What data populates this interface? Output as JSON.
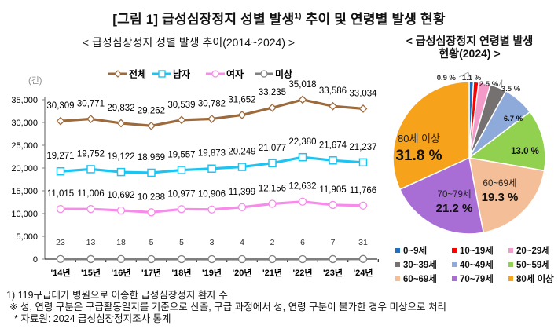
{
  "figure": {
    "title_prefix": "[그림 1] 급성심장정지 성별 발생",
    "title_sup": "1)",
    "title_suffix": " 추이 및 연령별 발생 현황"
  },
  "chart_data": [
    {
      "type": "line",
      "title": "< 급성심장정지 성별 발생 추이(2014~2024) >",
      "ylabel": "(건)",
      "xlabel": "",
      "categories": [
        "'14년",
        "'15년",
        "'16년",
        "'17년",
        "'18년",
        "'19년",
        "'20년",
        "'21년",
        "'22년",
        "'23년",
        "'24년"
      ],
      "ylim": [
        0,
        35000
      ],
      "yticks": [
        0,
        5000,
        10000,
        15000,
        20000,
        25000,
        30000,
        35000
      ],
      "ytick_labels": [
        "0",
        "5,000",
        "10,000",
        "15,000",
        "20,000",
        "25,000",
        "30,000",
        "35,000"
      ],
      "grid": false,
      "legend_position": "top",
      "series": [
        {
          "name": "전체",
          "color": "#9C6A3C",
          "marker": "diamond",
          "values": [
            30309,
            30771,
            29832,
            29262,
            30539,
            30782,
            31652,
            33235,
            35018,
            33586,
            33034
          ],
          "labels": [
            "30,309",
            "30,771",
            "29,832",
            "29,262",
            "30,539",
            "30,782",
            "31,652",
            "33,235",
            "35,018",
            "33,586",
            "33,034"
          ]
        },
        {
          "name": "남자",
          "color": "#1EC3F0",
          "marker": "square",
          "values": [
            19271,
            19752,
            19122,
            18969,
            19557,
            19873,
            20249,
            21077,
            22380,
            21674,
            21237
          ],
          "labels": [
            "19,271",
            "19,752",
            "19,122",
            "18,969",
            "19,557",
            "19,873",
            "20,249",
            "21,077",
            "22,380",
            "21,674",
            "21,237"
          ]
        },
        {
          "name": "여자",
          "color": "#F78BEA",
          "marker": "circle",
          "values": [
            11015,
            11006,
            10692,
            10288,
            10977,
            10906,
            11399,
            12156,
            12632,
            11905,
            11766
          ],
          "labels": [
            "11,015",
            "11,006",
            "10,692",
            "10,288",
            "10,977",
            "10,906",
            "11,399",
            "12,156",
            "12,632",
            "11,905",
            "11,766"
          ]
        },
        {
          "name": "미상",
          "color": "#7F7F7F",
          "marker": "circle",
          "values": [
            23,
            13,
            18,
            5,
            5,
            3,
            4,
            2,
            6,
            7,
            31
          ],
          "labels": [
            "23",
            "13",
            "18",
            "5",
            "5",
            "3",
            "4",
            "2",
            "6",
            "7",
            "31"
          ]
        }
      ]
    },
    {
      "type": "pie",
      "title": "< 급성심장정지 연령별 발생 현황(2024) >",
      "title_line1": "< 급성심장정지 연령별 발생",
      "title_line2": "현황(2024) >",
      "legend_position": "bottom",
      "slices": [
        {
          "label": "0~9세",
          "value": 0.9,
          "text": "0.9 %",
          "color": "#1F6FC5"
        },
        {
          "label": "10~19세",
          "value": 1.1,
          "text": "1.1 %",
          "color": "#FF0000"
        },
        {
          "label": "20~29세",
          "value": 2.5,
          "text": "2.5 %",
          "color": "#F49AC8"
        },
        {
          "label": "30~39세",
          "value": 3.5,
          "text": "3.5 %",
          "color": "#767171"
        },
        {
          "label": "40~49세",
          "value": 6.7,
          "text": "6.7 %",
          "color": "#8EAADB"
        },
        {
          "label": "50~59세",
          "value": 13.0,
          "text": "13.0 %",
          "color": "#92D050"
        },
        {
          "label": "60~69세",
          "value": 19.3,
          "text": "19.3 %",
          "color": "#F4BE99"
        },
        {
          "label": "70~79세",
          "value": 21.2,
          "text": "21.2 %",
          "color": "#A86ED6"
        },
        {
          "label": "80세 이상",
          "value": 31.8,
          "text": "31.8 %",
          "color": "#F7A21B"
        }
      ]
    }
  ],
  "notes": [
    "1) 119구급대가 병원으로 이송한 급성심장정지 환자 수",
    "※ 성, 연령 구분은 구급활동일지를 기준으로 산출, 구급 과정에서 성, 연령 구분이 불가한 경우 미상으로 처리",
    "  * 자료원: 2024 급성심장정지조사 통계"
  ]
}
